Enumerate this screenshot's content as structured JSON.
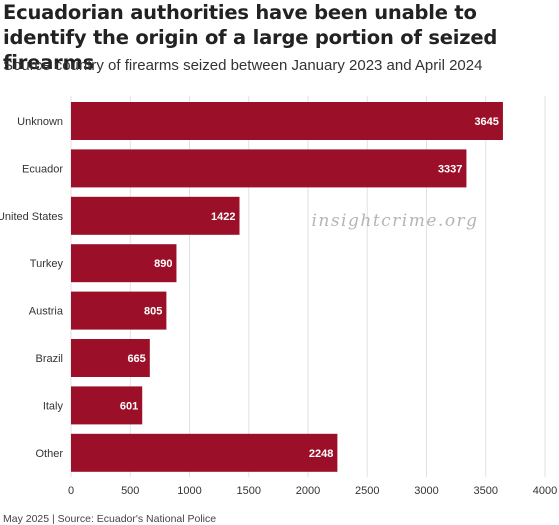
{
  "title": "Ecuadorian authorities have been unable to identify the origin of a large portion of seized firearms",
  "subtitle": "Source country of firearms seized between January 2023 and April 2024",
  "watermark": "insightcrime.org",
  "footer": "May 2025 | Source: Ecuador's National Police",
  "colors": {
    "bar": "#9b1028",
    "grid": "#e2e2e2",
    "axis": "#333333",
    "watermark": "#b5b5b5"
  },
  "chart_data": {
    "type": "bar",
    "orientation": "horizontal",
    "categories": [
      "Unknown",
      "Ecuador",
      "United States",
      "Turkey",
      "Austria",
      "Brazil",
      "Italy",
      "Other"
    ],
    "values": [
      3645,
      3337,
      1422,
      890,
      805,
      665,
      601,
      2248
    ],
    "xlim": [
      0,
      4000
    ],
    "xticks": [
      0,
      500,
      1000,
      1500,
      2000,
      2500,
      3000,
      3500,
      4000
    ],
    "grid": true,
    "data_labels": true
  }
}
